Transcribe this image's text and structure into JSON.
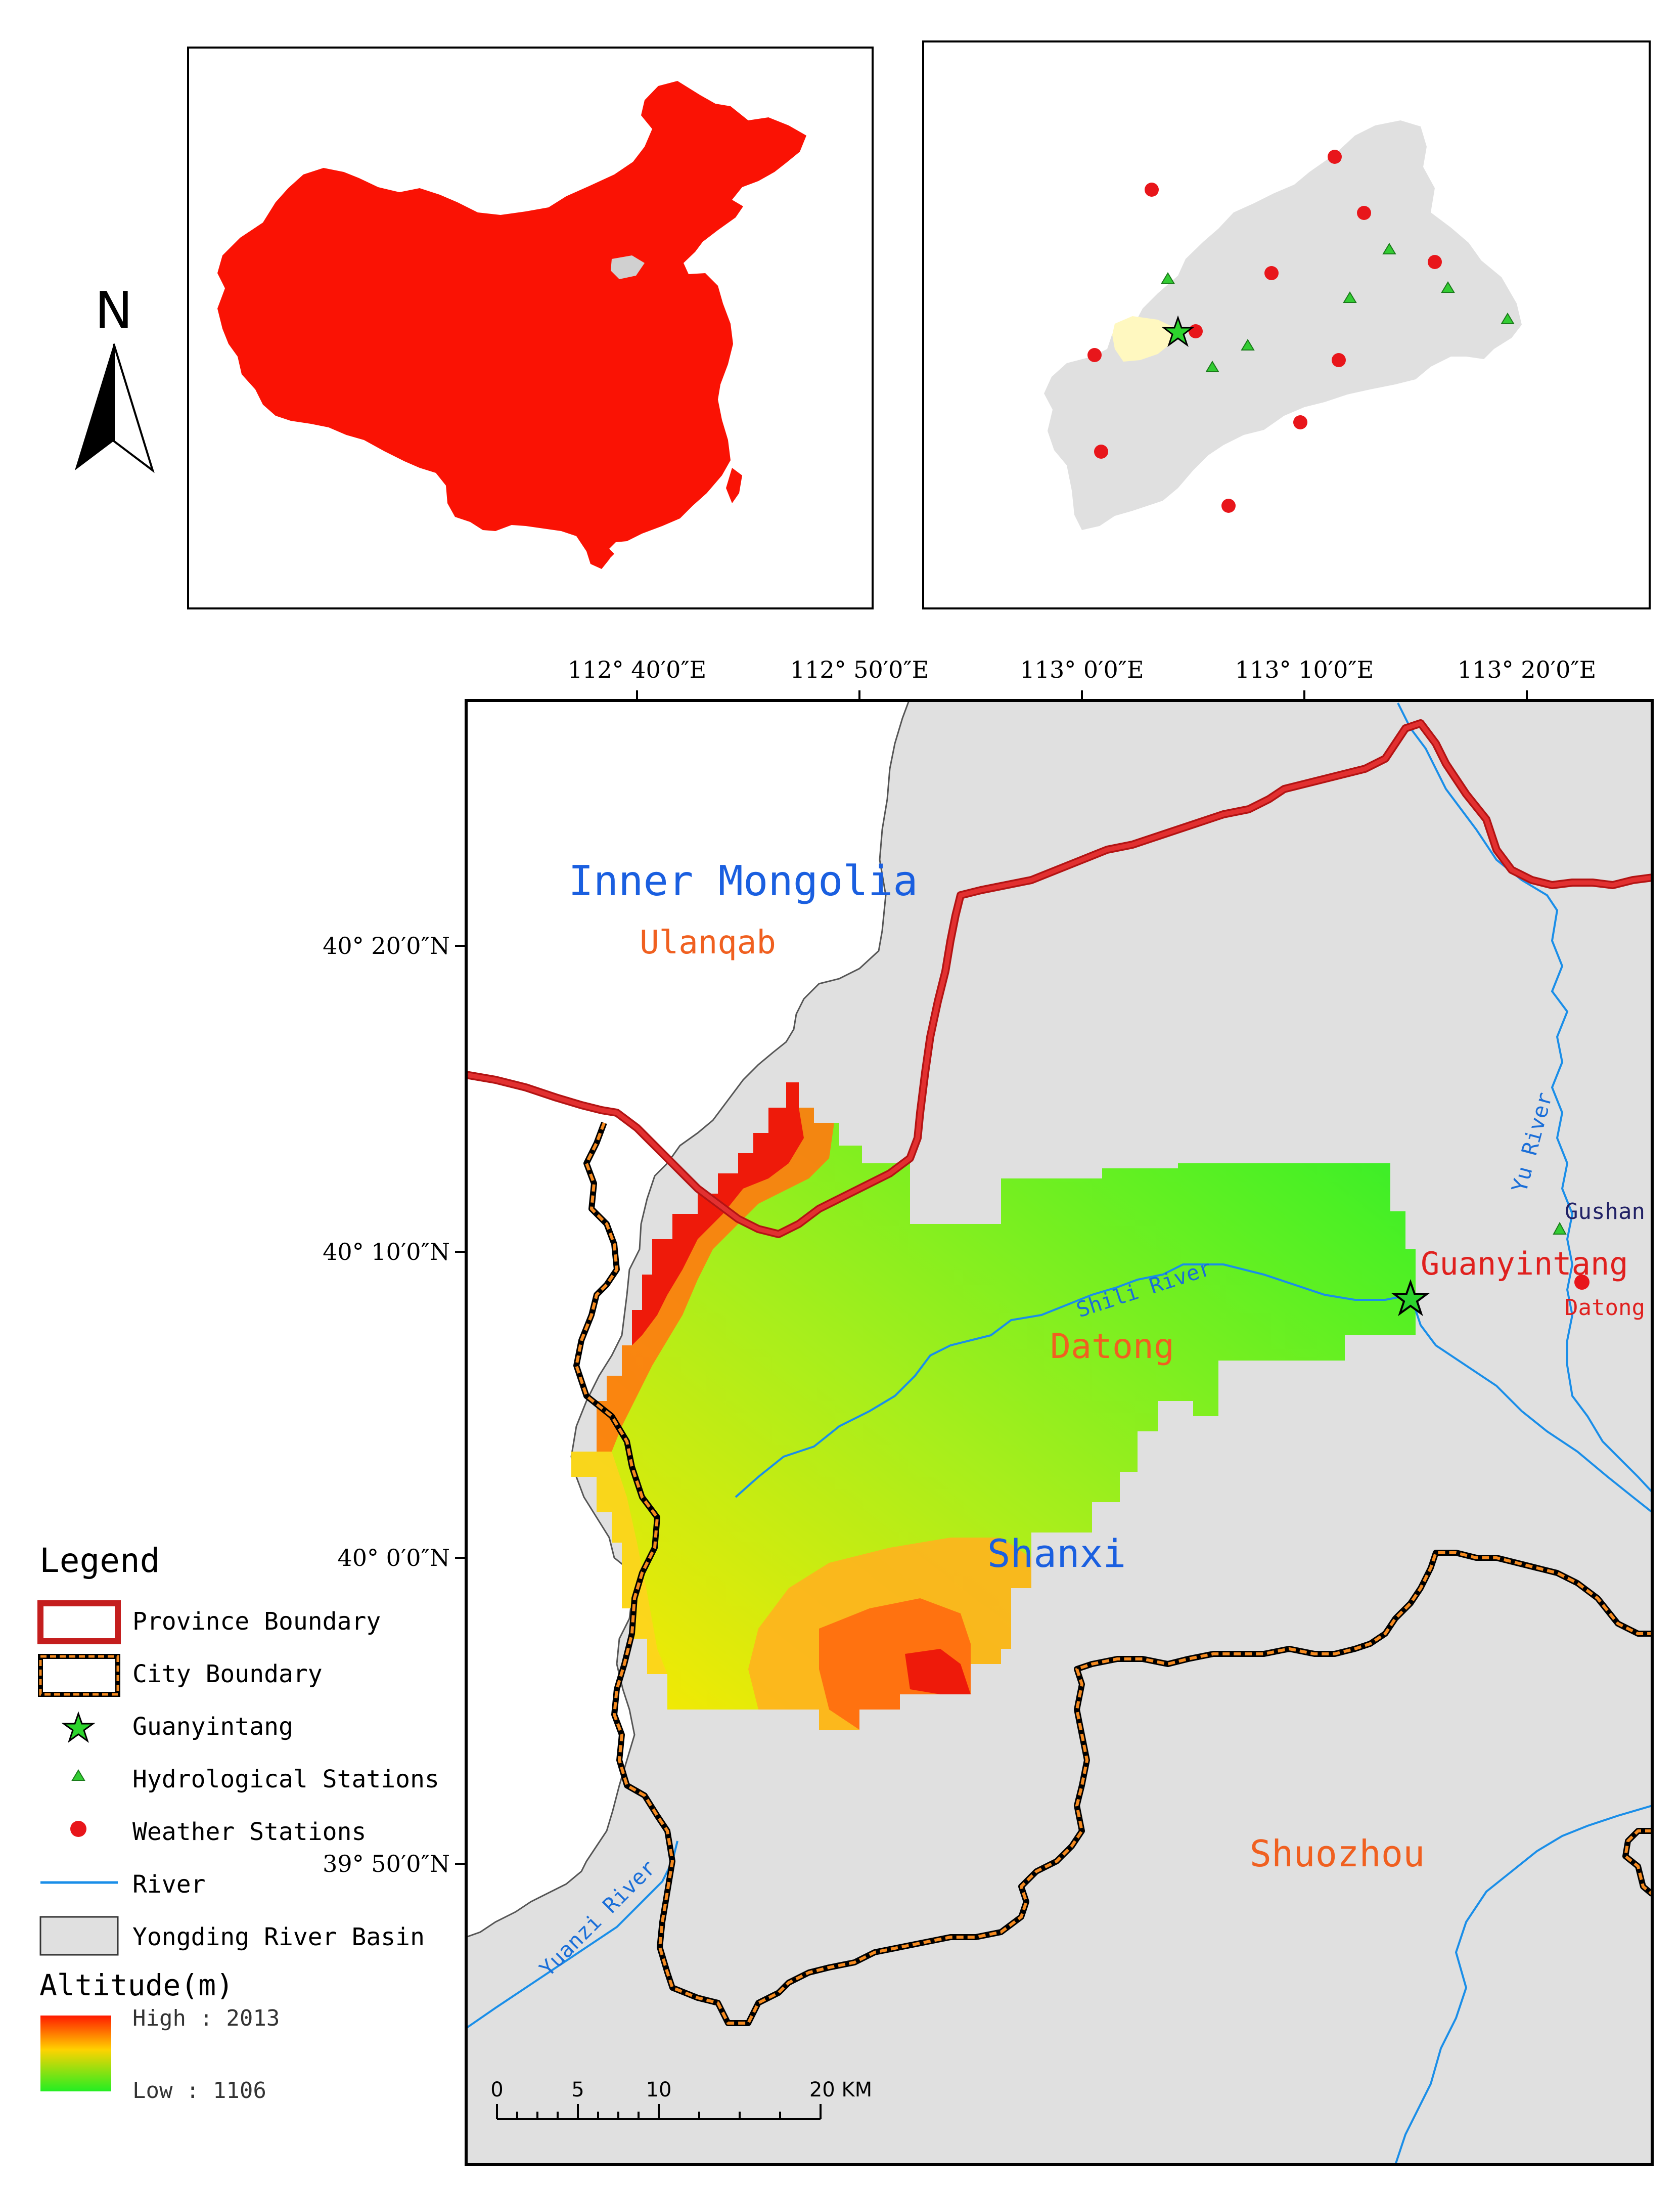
{
  "north_arrow": {
    "label": "N"
  },
  "main_map": {
    "lon_ticks": [
      "112° 40′0″E",
      "112° 50′0″E",
      "113° 0′0″E",
      "113° 10′0″E",
      "113° 20′0″E"
    ],
    "lat_ticks": [
      "40° 20′0″N",
      "40° 10′0″N",
      "40° 0′0″N",
      "39° 50′0″N"
    ],
    "labels": {
      "inner_mongolia": "Inner Mongolia",
      "ulanqab": "Ulanqab",
      "datong_city": "Datong",
      "shanxi": "Shanxi",
      "shuozhou": "Shuozhou",
      "guanyintang": "Guanyintang",
      "gushan": "Gushan",
      "datong_station": "Datong",
      "shili_river": "Shili River",
      "yu_river": "Yu River",
      "yuanzi_river": "Yuanzi River"
    },
    "scale_bar": {
      "ticks": [
        "0",
        "5",
        "10",
        "20 KM"
      ]
    }
  },
  "legend": {
    "title": "Legend",
    "items": [
      {
        "label": "Province Boundary"
      },
      {
        "label": "City Boundary"
      },
      {
        "label": "Guanyintang"
      },
      {
        "label": "Hydrological Stations"
      },
      {
        "label": "Weather Stations"
      },
      {
        "label": "River"
      },
      {
        "label": "Yongding River Basin"
      }
    ],
    "altitude_title": "Altitude(m)",
    "high_label": "High : 2013",
    "low_label": "Low : 1106"
  },
  "colors": {
    "province_boundary": "#d61f1f",
    "china_fill": "#fa1204",
    "basin_fill": "#e0e0e0",
    "river": "#1a8ee8",
    "weather_station": "#e8161b",
    "hydro_station": "#33cc33",
    "star": "#2dd42d",
    "label_blue": "#1a5fe0",
    "label_orange": "#f06020",
    "label_red": "#e0201e"
  }
}
